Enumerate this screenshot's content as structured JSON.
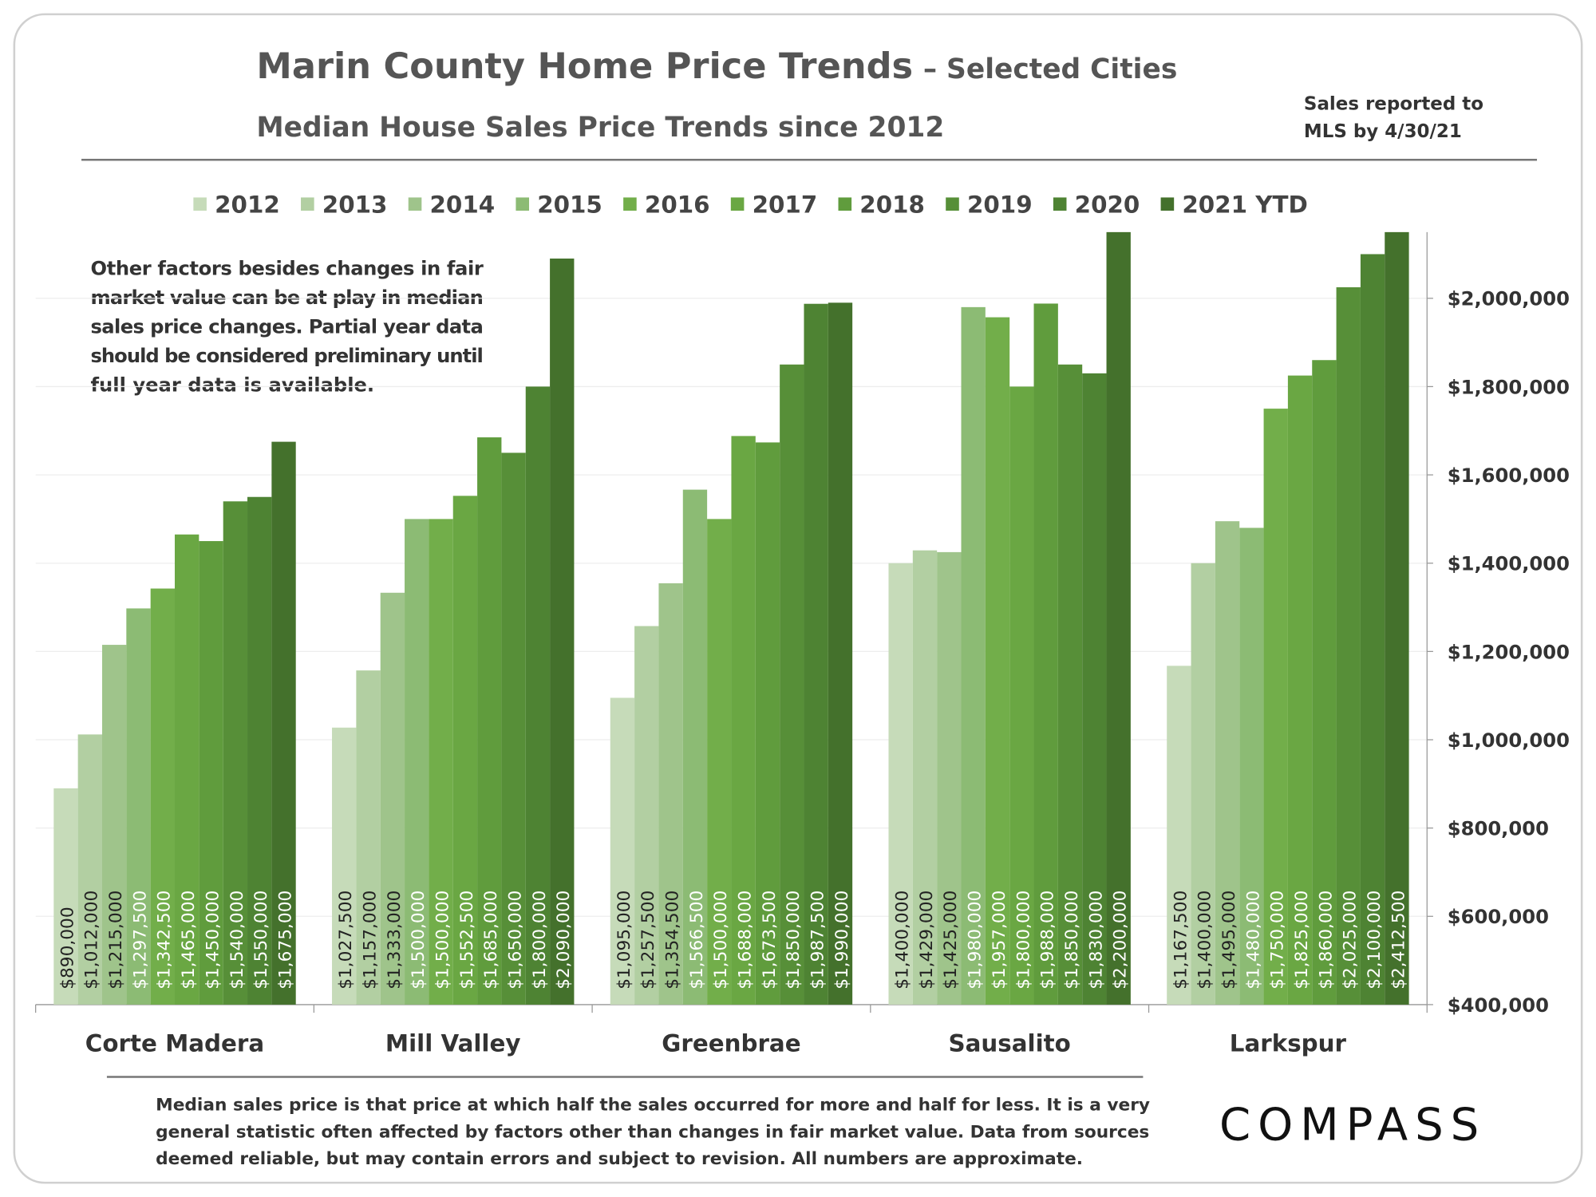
{
  "chart_data": {
    "type": "bar",
    "title": "Marin County Home Price Trends",
    "title_suffix": "– Selected Cities",
    "subtitle": "Median House Sales Price Trends since 2012",
    "note": [
      "Sales reported to",
      "MLS by 4/30/21"
    ],
    "annotation": [
      "Other factors besides changes in fair",
      "market value can be at play in median",
      "sales price changes. Partial year data",
      "should be considered preliminary until",
      "full year data is available."
    ],
    "footnote": [
      "Median sales price is that price at which half the sales occurred for more and half for less. It is a very",
      "general statistic often affected by factors other than changes in fair market value. Data from sources",
      "deemed reliable, but may contain errors and subject to revision. All numbers are approximate."
    ],
    "logo": "COMPASS",
    "categories": [
      "Corte Madera",
      "Mill Valley",
      "Greenbrae",
      "Sausalito",
      "Larkspur"
    ],
    "series": [
      {
        "name": "2012",
        "color": "#c6dbb9",
        "values": [
          890000,
          1027500,
          1095000,
          1400000,
          1167500
        ],
        "value_labels": [
          "$890,000",
          "$1,027,500",
          "$1,095,000",
          "$1,400,000",
          "$1,167,500"
        ]
      },
      {
        "name": "2013",
        "color": "#b2cfa2",
        "values": [
          1012000,
          1157000,
          1257500,
          1429000,
          1400000
        ],
        "value_labels": [
          "$1,012,000",
          "$1,157,000",
          "$1,257,500",
          "$1,429,000",
          "$1,400,000"
        ]
      },
      {
        "name": "2014",
        "color": "#9fc48b",
        "values": [
          1215000,
          1333000,
          1354500,
          1425000,
          1495000
        ],
        "value_labels": [
          "$1,215,000",
          "$1,333,000",
          "$1,354,500",
          "$1,425,000",
          "$1,495,000"
        ]
      },
      {
        "name": "2015",
        "color": "#8cbb74",
        "values": [
          1297500,
          1500000,
          1566500,
          1980000,
          1480000
        ],
        "value_labels": [
          "$1,297,500",
          "$1,500,000",
          "$1,566,500",
          "$1,980,000",
          "$1,480,000"
        ]
      },
      {
        "name": "2016",
        "color": "#72ae4a",
        "values": [
          1342500,
          1500000,
          1500000,
          1957000,
          1750000
        ],
        "value_labels": [
          "$1,342,500",
          "$1,500,000",
          "$1,500,000",
          "$1,957,000",
          "$1,750,000"
        ]
      },
      {
        "name": "2017",
        "color": "#6aa743",
        "values": [
          1465000,
          1552500,
          1688000,
          1800000,
          1825000
        ],
        "value_labels": [
          "$1,465,000",
          "$1,552,500",
          "$1,688,000",
          "$1,800,000",
          "$1,825,000"
        ]
      },
      {
        "name": "2018",
        "color": "#609c3d",
        "values": [
          1450000,
          1685000,
          1673500,
          1988000,
          1860000
        ],
        "value_labels": [
          "$1,450,000",
          "$1,685,000",
          "$1,673,500",
          "$1,988,000",
          "$1,860,000"
        ]
      },
      {
        "name": "2019",
        "color": "#578f38",
        "values": [
          1540000,
          1650000,
          1850000,
          1850000,
          2025000
        ],
        "value_labels": [
          "$1,540,000",
          "$1,650,000",
          "$1,850,000",
          "$1,850,000",
          "$2,025,000"
        ]
      },
      {
        "name": "2020",
        "color": "#4e8333",
        "values": [
          1550000,
          1800000,
          1987500,
          1830000,
          2100000
        ],
        "value_labels": [
          "$1,550,000",
          "$1,800,000",
          "$1,987,500",
          "$1,830,000",
          "$2,100,000"
        ]
      },
      {
        "name": "2021 YTD",
        "color": "#44712c",
        "values": [
          1675000,
          2090000,
          1990000,
          2200000,
          2412500
        ],
        "value_labels": [
          "$1,675,000",
          "$2,090,000",
          "$1,990,000",
          "$2,200,000",
          "$2,412,500"
        ]
      }
    ],
    "ylim": [
      400000,
      2150000
    ],
    "yticks": [
      {
        "value": 400000,
        "label": "$400,000"
      },
      {
        "value": 600000,
        "label": "$600,000"
      },
      {
        "value": 800000,
        "label": "$800,000"
      },
      {
        "value": 1000000,
        "label": "$1,000,000"
      },
      {
        "value": 1200000,
        "label": "$1,200,000"
      },
      {
        "value": 1400000,
        "label": "$1,400,000"
      },
      {
        "value": 1600000,
        "label": "$1,600,000"
      },
      {
        "value": 1800000,
        "label": "$1,800,000"
      },
      {
        "value": 2000000,
        "label": "$2,000,000"
      }
    ],
    "grid": true
  }
}
